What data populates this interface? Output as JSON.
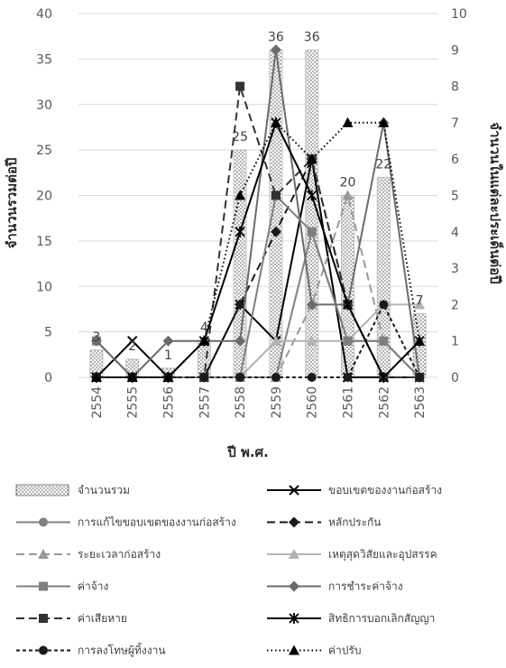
{
  "chart_data": {
    "type": "bar",
    "categories": [
      "2554",
      "2555",
      "2556",
      "2557",
      "2558",
      "2559",
      "2560",
      "2561",
      "2562",
      "2563"
    ],
    "xlabel": "ปี พ.ศ.",
    "ylabel": "จำนวนรวมต่อปี",
    "y2label": "จำนวนในแต่ละประเด็นต่อปี",
    "ylim": [
      0,
      40
    ],
    "y2lim": [
      0,
      10
    ],
    "y_ticks": [
      "0",
      "5",
      "10",
      "15",
      "20",
      "25",
      "30",
      "35",
      "40"
    ],
    "y2_ticks": [
      "0",
      "1",
      "2",
      "3",
      "4",
      "5",
      "6",
      "7",
      "8",
      "9",
      "10"
    ],
    "grid": true,
    "legend_position": "bottom",
    "bar_series": {
      "name": "จำนวนรวม",
      "values": [
        3,
        2,
        1,
        4,
        25,
        36,
        36,
        20,
        22,
        7
      ],
      "labels": [
        "3",
        "2",
        "1",
        "4",
        "25",
        "36",
        "36",
        "20",
        "22",
        "7"
      ]
    },
    "series": [
      {
        "name": "ขอบเขตของงานก่อสร้าง",
        "axis": "secondary",
        "color": "#000000",
        "dash": "solid",
        "marker": "x",
        "values": [
          0,
          1,
          0,
          0,
          2,
          1,
          6,
          0,
          0,
          0
        ]
      },
      {
        "name": "การแก้ไขขอบเขตของงานก่อสร้าง",
        "axis": "secondary",
        "color": "#808080",
        "dash": "solid",
        "marker": "circle",
        "values": [
          0,
          0,
          0,
          0,
          0,
          0,
          4,
          1,
          1,
          0
        ]
      },
      {
        "name": "หลักประกัน",
        "axis": "secondary",
        "color": "#1a1a1a",
        "dash": "longdash",
        "marker": "diamond",
        "values": [
          0,
          0,
          0,
          0,
          2,
          4,
          6,
          2,
          0,
          0
        ]
      },
      {
        "name": "ระยะเวลาก่อสร้าง",
        "axis": "secondary",
        "color": "#999999",
        "dash": "longdash",
        "marker": "triangle",
        "values": [
          0,
          0,
          0,
          0,
          0,
          0,
          2,
          5,
          1,
          0
        ]
      },
      {
        "name": "เหตุสุดวิสัยและอุปสรรค",
        "axis": "secondary",
        "color": "#b3b3b3",
        "dash": "solid",
        "marker": "triangle",
        "values": [
          0,
          0,
          0,
          0,
          0,
          1,
          1,
          1,
          2,
          2
        ]
      },
      {
        "name": "ค่าจ้าง",
        "axis": "secondary",
        "color": "#7f7f7f",
        "dash": "solid",
        "marker": "square",
        "values": [
          1,
          0,
          0,
          0,
          0,
          5,
          4,
          1,
          1,
          0
        ]
      },
      {
        "name": "การชำระค่าจ้าง",
        "axis": "secondary",
        "color": "#6b6b6b",
        "dash": "solid",
        "marker": "diamond",
        "values": [
          1,
          0,
          1,
          1,
          1,
          9,
          2,
          2,
          7,
          0
        ]
      },
      {
        "name": "ค่าเสียหาย",
        "axis": "secondary",
        "color": "#333333",
        "dash": "longdash",
        "marker": "square",
        "values": [
          0,
          0,
          0,
          0,
          8,
          5,
          6,
          2,
          0,
          0
        ]
      },
      {
        "name": "สิทธิการบอกเลิกสัญญา",
        "axis": "secondary",
        "color": "#000000",
        "dash": "solid",
        "marker": "star",
        "values": [
          0,
          0,
          0,
          1,
          4,
          7,
          5,
          2,
          0,
          1
        ]
      },
      {
        "name": "การลงโทษผู้ทิ้งงาน",
        "axis": "secondary",
        "color": "#1a1a1a",
        "dash": "shortdash",
        "marker": "circle",
        "values": [
          0,
          0,
          0,
          0,
          0,
          0,
          0,
          0,
          2,
          0
        ]
      },
      {
        "name": "ค่าปรับ",
        "axis": "secondary",
        "color": "#000000",
        "dash": "dotted",
        "marker": "triangle",
        "values": [
          0,
          0,
          0,
          1,
          5,
          7,
          6,
          7,
          7,
          1
        ]
      }
    ]
  }
}
